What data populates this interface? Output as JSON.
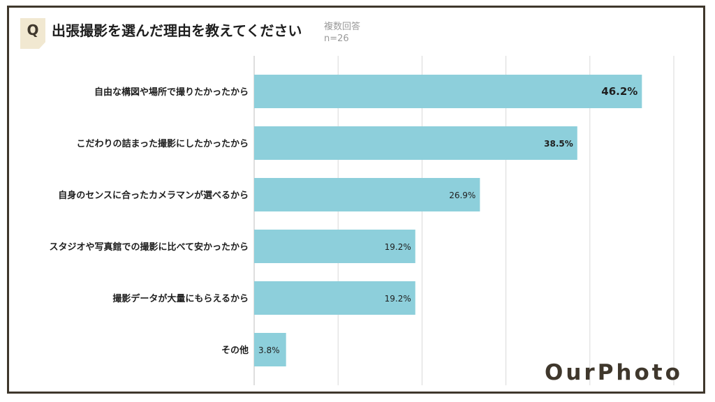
{
  "question": {
    "badge": "Q",
    "title": "出張撮影を選んだ理由を教えてください",
    "note": "複数回答",
    "sample": "n=26"
  },
  "colors": {
    "bar": "#8dcfdb",
    "frame": "#3f372c",
    "badge_bg": "#f1e8d1",
    "grid": "#d9d9d9"
  },
  "chart_data": {
    "type": "bar",
    "orientation": "horizontal",
    "categories": [
      "自由な構図や場所で撮りたかったから",
      "こだわりの詰まった撮影にしたかったから",
      "自身のセンスに合ったカメラマンが選べるから",
      "スタジオや写真館での撮影に比べて安かったから",
      "撮影データが大量にもらえるから",
      "その他"
    ],
    "values": [
      46.2,
      38.5,
      26.9,
      19.2,
      19.2,
      3.8
    ],
    "value_labels": [
      "46.2%",
      "38.5%",
      "26.9%",
      "19.2%",
      "19.2%",
      "3.8%"
    ],
    "unit": "%",
    "xlim": [
      0,
      50
    ],
    "grid": true
  },
  "brand": {
    "logo_text": "OurPhoto"
  }
}
